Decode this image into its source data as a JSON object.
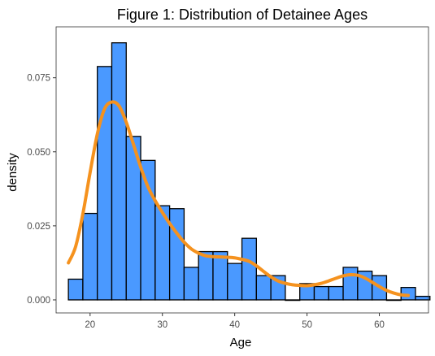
{
  "chart_data": {
    "type": "bar",
    "title": "Figure 1: Distribution of Detainee Ages",
    "xlabel": "Age",
    "ylabel": "density",
    "xlim": [
      15.3,
      66.8
    ],
    "ylim": [
      -0.0044,
      0.0922
    ],
    "x_ticks": [
      20,
      30,
      40,
      50,
      60
    ],
    "x_tick_labels": [
      "20",
      "30",
      "40",
      "50",
      "60"
    ],
    "y_ticks": [
      0.0,
      0.025,
      0.05,
      0.075
    ],
    "y_tick_labels": [
      "0.000",
      "0.025",
      "0.050",
      "0.075"
    ],
    "grid": false,
    "legend": "none",
    "histogram": {
      "bin_width": 2,
      "bin_edges": [
        17,
        19,
        21,
        23,
        25,
        27,
        29,
        31,
        33,
        35,
        37,
        39,
        41,
        43,
        45,
        47,
        49,
        51,
        53,
        55,
        57,
        59,
        61,
        63,
        65
      ],
      "values": [
        0.007,
        0.0292,
        0.0788,
        0.0868,
        0.0552,
        0.0471,
        0.0318,
        0.0308,
        0.011,
        0.0163,
        0.0163,
        0.0123,
        0.0208,
        0.0082,
        0.0082,
        0.0,
        0.0055,
        0.0045,
        0.0045,
        0.011,
        0.0097,
        0.0082,
        0.0,
        0.0042,
        0.0012
      ],
      "fill_color": "#4a99ff",
      "edge_color": "#000000"
    },
    "density_curve": {
      "color": "#f5921e",
      "x": [
        17,
        18,
        19,
        20,
        21,
        22,
        23,
        24,
        25,
        26,
        27,
        28,
        29,
        30,
        31,
        32,
        33,
        34,
        35,
        36,
        37,
        38,
        39,
        40,
        41,
        42,
        43,
        44,
        45,
        46,
        47,
        48,
        49,
        50,
        51,
        52,
        53,
        54,
        55,
        56,
        57,
        58,
        59,
        60,
        61,
        62,
        63,
        64
      ],
      "y": [
        0.0125,
        0.018,
        0.029,
        0.043,
        0.056,
        0.0645,
        0.0668,
        0.0655,
        0.06,
        0.0525,
        0.0448,
        0.0382,
        0.0335,
        0.0295,
        0.0258,
        0.0225,
        0.0195,
        0.0172,
        0.0158,
        0.0149,
        0.0146,
        0.0145,
        0.0144,
        0.0142,
        0.0137,
        0.013,
        0.0115,
        0.0096,
        0.0078,
        0.0064,
        0.0056,
        0.0051,
        0.0049,
        0.0048,
        0.0051,
        0.0056,
        0.0064,
        0.0073,
        0.0081,
        0.0085,
        0.0083,
        0.0074,
        0.006,
        0.0045,
        0.0032,
        0.0023,
        0.0017,
        0.0015
      ]
    }
  }
}
